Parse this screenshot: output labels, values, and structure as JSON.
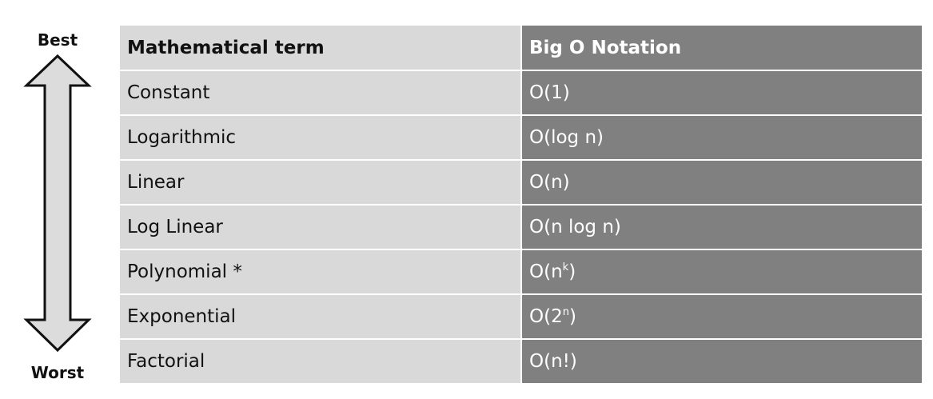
{
  "scale": {
    "best_label": "Best",
    "worst_label": "Worst"
  },
  "table": {
    "headers": [
      "Mathematical term",
      "Big O Notation"
    ],
    "rows": [
      {
        "term": "Constant",
        "notation": "O(1)"
      },
      {
        "term": "Logarithmic",
        "notation": "O(log n)"
      },
      {
        "term": "Linear",
        "notation": "O(n)"
      },
      {
        "term": "Log Linear",
        "notation": "O(n log n)"
      },
      {
        "term": "Polynomial *",
        "notation_base": "O(n",
        "notation_sup": "k",
        "notation_end": ")"
      },
      {
        "term": "Exponential",
        "notation_base": "O(2",
        "notation_sup": "n",
        "notation_end": ")"
      },
      {
        "term": "Factorial",
        "notation": "O(n!)"
      }
    ]
  },
  "colors": {
    "term_column_bg": "#d9d9d9",
    "notation_column_bg": "#808080",
    "arrow_fill": "#dcdcdc",
    "arrow_stroke": "#111111"
  }
}
